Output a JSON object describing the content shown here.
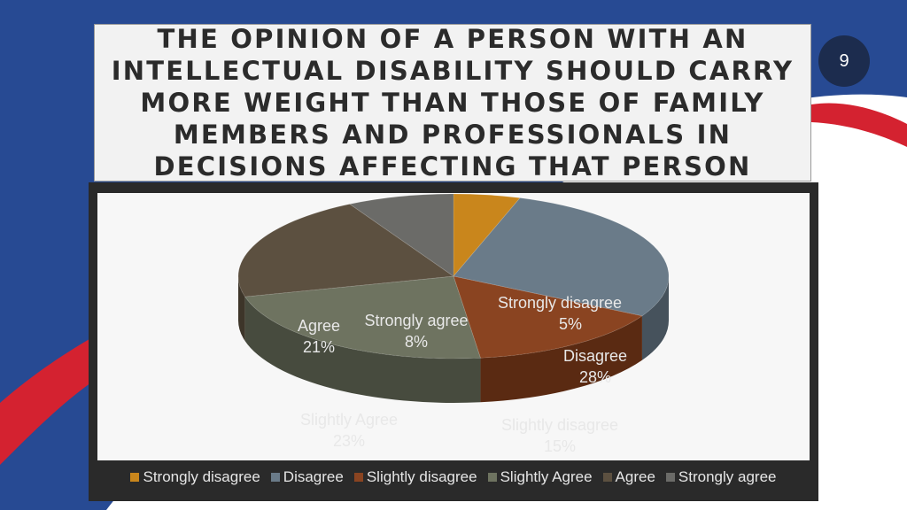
{
  "slide": {
    "title": "THE OPINION OF A PERSON WITH AN INTELLECTUAL DISABILITY SHOULD CARRY MORE WEIGHT THAN THOSE OF FAMILY MEMBERS AND PROFESSIONALS IN DECISIONS AFFECTING THAT PERSON",
    "page_number": "9"
  },
  "colors": {
    "background_blue": "#274a93",
    "accent_red": "#d42230",
    "badge": "#1c2c4e"
  },
  "chart_data": {
    "type": "pie",
    "style": "3d",
    "legend_position": "bottom",
    "title": "",
    "slices": [
      {
        "label": "Strongly disagree",
        "value": 5,
        "value_label": "5%",
        "color": "#c9861c",
        "side_color": "#8a5a10"
      },
      {
        "label": "Disagree",
        "value": 28,
        "value_label": "28%",
        "color": "#6a7b89",
        "side_color": "#46525c"
      },
      {
        "label": "Slightly disagree",
        "value": 15,
        "value_label": "15%",
        "color": "#8a4421",
        "side_color": "#5a2a12"
      },
      {
        "label": "Slightly Agree",
        "value": 23,
        "value_label": "23%",
        "color": "#6e7360",
        "side_color": "#474b3e"
      },
      {
        "label": "Agree",
        "value": 21,
        "value_label": "21%",
        "color": "#5c5040",
        "side_color": "#3d3529"
      },
      {
        "label": "Strongly agree",
        "value": 8,
        "value_label": "8%",
        "color": "#6b6b68",
        "side_color": "#474745"
      }
    ]
  }
}
